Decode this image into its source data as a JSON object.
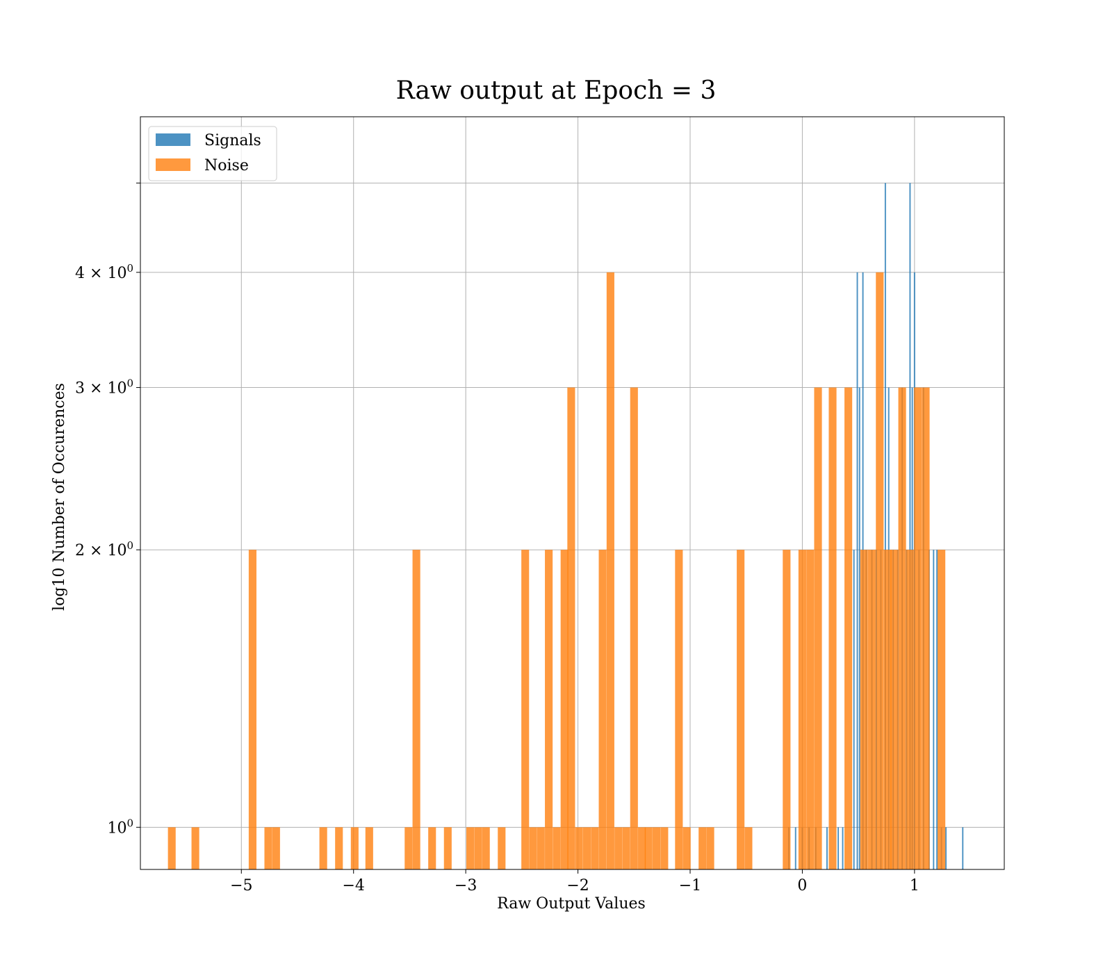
{
  "chart_data": {
    "type": "bar",
    "title": "Raw output at Epoch = 3",
    "xlabel": "Raw Output Values",
    "ylabel": "log10 Number of Occurences",
    "xlim": [
      -5.9,
      1.8
    ],
    "ylim": [
      0.9,
      5.9
    ],
    "yscale": "log",
    "grid": true,
    "legend_position": "top-left",
    "x_ticks": [
      {
        "value": -5,
        "label": "−5"
      },
      {
        "value": -4,
        "label": "−4"
      },
      {
        "value": -3,
        "label": "−3"
      },
      {
        "value": -2,
        "label": "−2"
      },
      {
        "value": -1,
        "label": "−1"
      },
      {
        "value": 0,
        "label": "0"
      },
      {
        "value": 1,
        "label": "1"
      }
    ],
    "y_ticks": [
      {
        "value": 1,
        "label": "10",
        "sup": "0"
      },
      {
        "value": 2,
        "label": "2 × 10",
        "sup": "0"
      },
      {
        "value": 3,
        "label": "3 × 10",
        "sup": "0"
      },
      {
        "value": 4,
        "label": "4 × 10",
        "sup": "0"
      },
      {
        "value": 5,
        "label": "",
        "sup": ""
      }
    ],
    "series": [
      {
        "name": "Signals",
        "color": "#1f77b4",
        "bin_width": 0.012,
        "bins": [
          {
            "x": -0.12,
            "y": 1
          },
          {
            "x": -0.06,
            "y": 1
          },
          {
            "x": 0.0,
            "y": 1
          },
          {
            "x": 0.06,
            "y": 1
          },
          {
            "x": 0.12,
            "y": 1
          },
          {
            "x": 0.22,
            "y": 1
          },
          {
            "x": 0.32,
            "y": 1
          },
          {
            "x": 0.36,
            "y": 1
          },
          {
            "x": 0.46,
            "y": 2
          },
          {
            "x": 0.49,
            "y": 4
          },
          {
            "x": 0.51,
            "y": 3
          },
          {
            "x": 0.54,
            "y": 4
          },
          {
            "x": 0.57,
            "y": 2
          },
          {
            "x": 0.62,
            "y": 2
          },
          {
            "x": 0.66,
            "y": 2
          },
          {
            "x": 0.7,
            "y": 2
          },
          {
            "x": 0.74,
            "y": 5
          },
          {
            "x": 0.77,
            "y": 3
          },
          {
            "x": 0.81,
            "y": 2
          },
          {
            "x": 0.85,
            "y": 2
          },
          {
            "x": 0.89,
            "y": 3
          },
          {
            "x": 0.93,
            "y": 2
          },
          {
            "x": 0.96,
            "y": 5
          },
          {
            "x": 0.98,
            "y": 3
          },
          {
            "x": 1.0,
            "y": 4
          },
          {
            "x": 1.04,
            "y": 2
          },
          {
            "x": 1.08,
            "y": 3
          },
          {
            "x": 1.13,
            "y": 2
          },
          {
            "x": 1.17,
            "y": 2
          },
          {
            "x": 1.2,
            "y": 2
          },
          {
            "x": 1.24,
            "y": 1
          },
          {
            "x": 1.28,
            "y": 1
          },
          {
            "x": 1.43,
            "y": 1
          }
        ]
      },
      {
        "name": "Noise",
        "color": "#ff7f0e",
        "bin_width": 0.0689,
        "bins": [
          {
            "x": -5.62,
            "y": 1
          },
          {
            "x": -5.41,
            "y": 1
          },
          {
            "x": -4.9,
            "y": 2
          },
          {
            "x": -4.76,
            "y": 1
          },
          {
            "x": -4.69,
            "y": 1
          },
          {
            "x": -4.27,
            "y": 1
          },
          {
            "x": -4.13,
            "y": 1
          },
          {
            "x": -3.99,
            "y": 1
          },
          {
            "x": -3.86,
            "y": 1
          },
          {
            "x": -3.51,
            "y": 1
          },
          {
            "x": -3.44,
            "y": 2
          },
          {
            "x": -3.3,
            "y": 1
          },
          {
            "x": -3.16,
            "y": 1
          },
          {
            "x": -2.96,
            "y": 1
          },
          {
            "x": -2.89,
            "y": 1
          },
          {
            "x": -2.82,
            "y": 1
          },
          {
            "x": -2.68,
            "y": 1
          },
          {
            "x": -2.47,
            "y": 2
          },
          {
            "x": -2.4,
            "y": 1
          },
          {
            "x": -2.33,
            "y": 1
          },
          {
            "x": -2.26,
            "y": 2
          },
          {
            "x": -2.19,
            "y": 1
          },
          {
            "x": -2.12,
            "y": 2
          },
          {
            "x": -2.06,
            "y": 3
          },
          {
            "x": -1.99,
            "y": 1
          },
          {
            "x": -1.92,
            "y": 1
          },
          {
            "x": -1.85,
            "y": 1
          },
          {
            "x": -1.78,
            "y": 2
          },
          {
            "x": -1.71,
            "y": 4
          },
          {
            "x": -1.64,
            "y": 1
          },
          {
            "x": -1.57,
            "y": 1
          },
          {
            "x": -1.5,
            "y": 3
          },
          {
            "x": -1.43,
            "y": 1
          },
          {
            "x": -1.37,
            "y": 1
          },
          {
            "x": -1.3,
            "y": 1
          },
          {
            "x": -1.23,
            "y": 1
          },
          {
            "x": -1.1,
            "y": 2
          },
          {
            "x": -1.03,
            "y": 1
          },
          {
            "x": -0.89,
            "y": 1
          },
          {
            "x": -0.82,
            "y": 1
          },
          {
            "x": -0.55,
            "y": 2
          },
          {
            "x": -0.48,
            "y": 1
          },
          {
            "x": -0.14,
            "y": 2
          },
          {
            "x": 0.0,
            "y": 2
          },
          {
            "x": 0.07,
            "y": 2
          },
          {
            "x": 0.14,
            "y": 3
          },
          {
            "x": 0.27,
            "y": 3
          },
          {
            "x": 0.41,
            "y": 3
          },
          {
            "x": 0.55,
            "y": 2
          },
          {
            "x": 0.62,
            "y": 2
          },
          {
            "x": 0.69,
            "y": 4
          },
          {
            "x": 0.76,
            "y": 2
          },
          {
            "x": 0.82,
            "y": 2
          },
          {
            "x": 0.89,
            "y": 3
          },
          {
            "x": 0.96,
            "y": 2
          },
          {
            "x": 1.03,
            "y": 3
          },
          {
            "x": 1.1,
            "y": 3
          },
          {
            "x": 1.24,
            "y": 2
          }
        ]
      }
    ]
  }
}
